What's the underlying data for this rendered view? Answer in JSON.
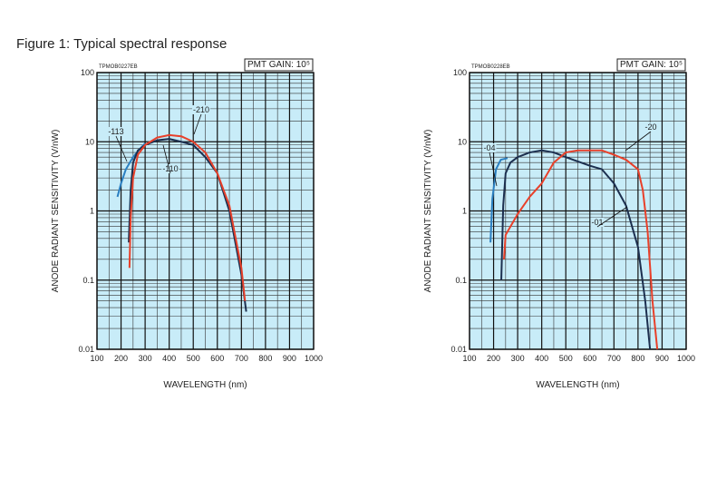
{
  "title": "Figure 1: Typical spectral response",
  "chart_data": [
    {
      "type": "line",
      "code": "TPMOB0227EB",
      "gain": "PMT GAIN: 10⁵",
      "xlabel": "WAVELENGTH (nm)",
      "ylabel": "ANODE RADIANT SENSITIVITY (V/nW)",
      "log_y": true,
      "grid": true,
      "background": "#c8ecf8",
      "xlim": [
        100,
        1000
      ],
      "xticks": [
        100,
        200,
        300,
        400,
        500,
        600,
        700,
        800,
        900,
        1000
      ],
      "ylim": [
        0.01,
        100
      ],
      "yticks": [
        0.01,
        0.1,
        1,
        10,
        100
      ],
      "series": [
        {
          "name": "-113",
          "color": "#2a7fc1",
          "x": [
            185,
            200,
            220,
            250,
            280,
            300
          ],
          "values": [
            1.6,
            2.5,
            4,
            6,
            8,
            9.5
          ]
        },
        {
          "name": "-110",
          "color": "#1c2f4f",
          "x": [
            232,
            240,
            250,
            270,
            300,
            350,
            400,
            450,
            500,
            550,
            600,
            650,
            700,
            720
          ],
          "values": [
            0.35,
            2,
            5,
            7.5,
            9,
            10.5,
            11,
            10,
            9,
            6,
            3.5,
            1,
            0.12,
            0.035
          ]
        },
        {
          "name": "-210",
          "color": "#e8402a",
          "x": [
            235,
            240,
            250,
            270,
            300,
            350,
            400,
            450,
            500,
            550,
            600,
            650,
            700,
            715
          ],
          "values": [
            0.15,
            0.8,
            3,
            6.5,
            9,
            11.5,
            12.5,
            12,
            10,
            7,
            3.5,
            1.2,
            0.15,
            0.05
          ]
        }
      ]
    },
    {
      "type": "line",
      "code": "TPMOB0228EB",
      "gain": "PMT GAIN: 10⁵",
      "xlabel": "WAVELENGTH (nm)",
      "ylabel": "ANODE RADIANT SENSITIVITY (V/nW)",
      "log_y": true,
      "grid": true,
      "background": "#c8ecf8",
      "xlim": [
        100,
        1000
      ],
      "xticks": [
        100,
        200,
        300,
        400,
        500,
        600,
        700,
        800,
        900,
        1000
      ],
      "ylim": [
        0.01,
        100
      ],
      "yticks": [
        0.01,
        0.1,
        1,
        10,
        100
      ],
      "series": [
        {
          "name": "-04",
          "color": "#2a7fc1",
          "x": [
            187,
            195,
            210,
            230,
            258
          ],
          "values": [
            0.35,
            1.5,
            4,
            5.5,
            5.8
          ]
        },
        {
          "name": "-01",
          "color": "#1c2f4f",
          "x": [
            232,
            240,
            250,
            270,
            300,
            350,
            400,
            450,
            500,
            600,
            650,
            700,
            750,
            800,
            830,
            850
          ],
          "values": [
            0.1,
            1.2,
            3.5,
            5,
            6,
            7,
            7.5,
            7,
            6,
            4.5,
            4,
            2.5,
            1.2,
            0.3,
            0.05,
            0.01
          ]
        },
        {
          "name": "-20",
          "color": "#e8402a",
          "x": [
            243,
            250,
            300,
            350,
            400,
            450,
            500,
            550,
            600,
            650,
            700,
            750,
            800,
            820,
            840,
            860,
            880
          ],
          "values": [
            0.2,
            0.45,
            0.9,
            1.6,
            2.5,
            5,
            7,
            7.5,
            7.5,
            7.5,
            6.5,
            5.5,
            4,
            2,
            0.5,
            0.05,
            0.01
          ]
        }
      ]
    }
  ]
}
